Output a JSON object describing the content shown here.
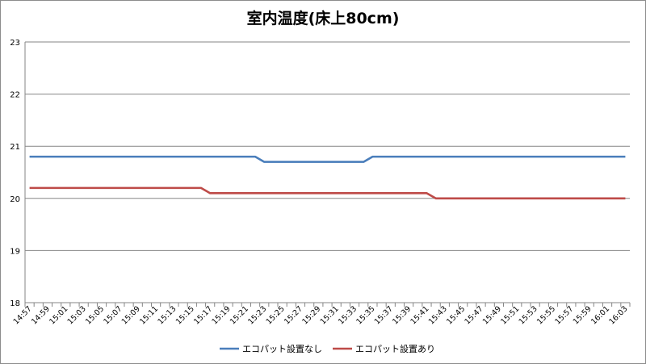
{
  "chart_data": {
    "type": "line",
    "title": "室内温度(床上80cm)",
    "xlabel": "",
    "ylabel": "",
    "ylim": [
      18,
      23
    ],
    "yticks": [
      18,
      19,
      20,
      21,
      22,
      23
    ],
    "grid": "horizontal",
    "legend": "bottom",
    "x": [
      "14:57",
      "14:58",
      "14:59",
      "15:00",
      "15:01",
      "15:02",
      "15:03",
      "15:04",
      "15:05",
      "15:06",
      "15:07",
      "15:08",
      "15:09",
      "15:10",
      "15:11",
      "15:12",
      "15:13",
      "15:14",
      "15:15",
      "15:16",
      "15:17",
      "15:18",
      "15:19",
      "15:20",
      "15:21",
      "15:22",
      "15:23",
      "15:24",
      "15:25",
      "15:26",
      "15:27",
      "15:28",
      "15:29",
      "15:30",
      "15:31",
      "15:32",
      "15:33",
      "15:34",
      "15:35",
      "15:36",
      "15:37",
      "15:38",
      "15:39",
      "15:40",
      "15:41",
      "15:42",
      "15:43",
      "15:44",
      "15:45",
      "15:46",
      "15:47",
      "15:48",
      "15:49",
      "15:50",
      "15:51",
      "15:52",
      "15:53",
      "15:54",
      "15:55",
      "15:56",
      "15:57",
      "15:58",
      "15:59",
      "16:00",
      "16:01",
      "16:02",
      "16:03"
    ],
    "x_tick_labels": [
      "14:57",
      "14:59",
      "15:01",
      "15:03",
      "15:05",
      "15:07",
      "15:09",
      "15:11",
      "15:13",
      "15:15",
      "15:17",
      "15:19",
      "15:21",
      "15:23",
      "15:25",
      "15:27",
      "15:29",
      "15:31",
      "15:33",
      "15:35",
      "15:37",
      "15:39",
      "15:41",
      "15:43",
      "15:45",
      "15:47",
      "15:49",
      "15:51",
      "15:53",
      "15:55",
      "15:57",
      "15:59",
      "16:01",
      "16:03"
    ],
    "series": [
      {
        "name": "エコパット設置なし",
        "color": "#4a7ebb",
        "values": [
          20.8,
          20.8,
          20.8,
          20.8,
          20.8,
          20.8,
          20.8,
          20.8,
          20.8,
          20.8,
          20.8,
          20.8,
          20.8,
          20.8,
          20.8,
          20.8,
          20.8,
          20.8,
          20.8,
          20.8,
          20.8,
          20.8,
          20.8,
          20.8,
          20.8,
          20.8,
          20.7,
          20.7,
          20.7,
          20.7,
          20.7,
          20.7,
          20.7,
          20.7,
          20.7,
          20.7,
          20.7,
          20.7,
          20.8,
          20.8,
          20.8,
          20.8,
          20.8,
          20.8,
          20.8,
          20.8,
          20.8,
          20.8,
          20.8,
          20.8,
          20.8,
          20.8,
          20.8,
          20.8,
          20.8,
          20.8,
          20.8,
          20.8,
          20.8,
          20.8,
          20.8,
          20.8,
          20.8,
          20.8,
          20.8,
          20.8,
          20.8
        ]
      },
      {
        "name": "エコパット設置あり",
        "color": "#be4b48",
        "values": [
          20.2,
          20.2,
          20.2,
          20.2,
          20.2,
          20.2,
          20.2,
          20.2,
          20.2,
          20.2,
          20.2,
          20.2,
          20.2,
          20.2,
          20.2,
          20.2,
          20.2,
          20.2,
          20.2,
          20.2,
          20.1,
          20.1,
          20.1,
          20.1,
          20.1,
          20.1,
          20.1,
          20.1,
          20.1,
          20.1,
          20.1,
          20.1,
          20.1,
          20.1,
          20.1,
          20.1,
          20.1,
          20.1,
          20.1,
          20.1,
          20.1,
          20.1,
          20.1,
          20.1,
          20.1,
          20.0,
          20.0,
          20.0,
          20.0,
          20.0,
          20.0,
          20.0,
          20.0,
          20.0,
          20.0,
          20.0,
          20.0,
          20.0,
          20.0,
          20.0,
          20.0,
          20.0,
          20.0,
          20.0,
          20.0,
          20.0,
          20.0
        ]
      }
    ]
  }
}
